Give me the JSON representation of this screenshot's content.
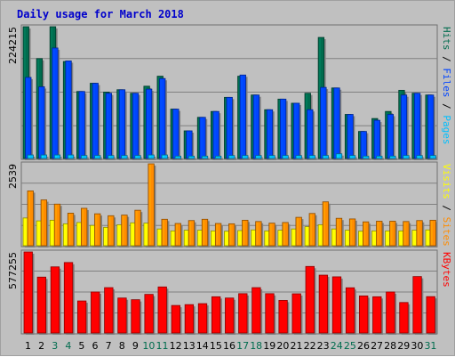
{
  "chart_data": {
    "type": "bar",
    "title": "Daily usage for March 2018",
    "categories": [
      "1",
      "2",
      "3",
      "4",
      "5",
      "6",
      "7",
      "8",
      "9",
      "10",
      "11",
      "12",
      "13",
      "14",
      "15",
      "16",
      "17",
      "18",
      "19",
      "20",
      "21",
      "22",
      "23",
      "24",
      "25",
      "26",
      "27",
      "28",
      "29",
      "30",
      "31"
    ],
    "weekend_days": [
      "3",
      "4",
      "10",
      "11",
      "17",
      "18",
      "24",
      "25",
      "31"
    ],
    "colors": {
      "hits": "#006c4e",
      "files": "#0044ff",
      "pages": "#00bfff",
      "visits": "#ffff00",
      "sites": "#ff8c00",
      "kbytes": "#ff0000",
      "background": "#c0c0c0",
      "weekend_label": "#006c4e",
      "weekday_label": "#000000"
    },
    "panels": [
      {
        "id": "hits-files-pages",
        "ymax_label": "224215",
        "ymax": 224215,
        "right_label": [
          {
            "text": "Pages",
            "color": "#00bfff"
          },
          {
            "text": " / ",
            "color": "#000000"
          },
          {
            "text": "Files",
            "color": "#0044ff"
          },
          {
            "text": " / ",
            "color": "#000000"
          },
          {
            "text": "Hits",
            "color": "#006c4e"
          }
        ],
        "series": [
          {
            "name": "Hits",
            "color": "#006c4e",
            "values": [
              224215,
              170000,
              224215,
              165000,
              114000,
              128000,
              113000,
              117000,
              111000,
              123000,
              140000,
              84000,
              47000,
              70000,
              80000,
              104000,
              140000,
              108000,
              83000,
              101000,
              94000,
              111000,
              206000,
              120000,
              75000,
              46000,
              68000,
              80000,
              116000,
              111000,
              108000
            ]
          },
          {
            "name": "Files",
            "color": "#0044ff",
            "values": [
              138000,
              122000,
              188000,
              166000,
              114000,
              128000,
              111000,
              117000,
              111000,
              118000,
              136000,
              84000,
              47000,
              70000,
              80000,
              104000,
              142000,
              108000,
              83000,
              101000,
              94000,
              83000,
              121000,
              120000,
              75000,
              46000,
              65000,
              75000,
              108000,
              111000,
              108000
            ]
          },
          {
            "name": "Pages",
            "color": "#00bfff",
            "values": [
              6000,
              6000,
              6000,
              6000,
              5000,
              5000,
              5000,
              5000,
              5000,
              6000,
              6000,
              4000,
              4000,
              4000,
              4000,
              5000,
              5000,
              5000,
              5000,
              5000,
              5000,
              5000,
              5000,
              8000,
              5000,
              4000,
              4000,
              4000,
              5000,
              5000,
              5000
            ]
          }
        ]
      },
      {
        "id": "visits-sites",
        "ymax_label": "2539",
        "ymax": 2539,
        "right_label": [
          {
            "text": "Sites",
            "color": "#ff8c00"
          },
          {
            "text": " / ",
            "color": "#000000"
          },
          {
            "text": "Visits",
            "color": "#ffff00"
          }
        ],
        "series": [
          {
            "name": "Sites",
            "color": "#ff8c00",
            "values": [
              1700,
              1420,
              1290,
              1010,
              1160,
              990,
              930,
              950,
              1100,
              2539,
              820,
              690,
              780,
              820,
              690,
              680,
              790,
              750,
              700,
              720,
              880,
              1000,
              1360,
              850,
              830,
              740,
              760,
              760,
              750,
              780,
              790
            ]
          },
          {
            "name": "Visits",
            "color": "#ffff00",
            "values": [
              860,
              770,
              790,
              680,
              720,
              630,
              570,
              650,
              710,
              700,
              520,
              460,
              480,
              480,
              460,
              450,
              470,
              490,
              460,
              480,
              520,
              590,
              650,
              520,
              480,
              450,
              460,
              460,
              460,
              480,
              490
            ]
          }
        ]
      },
      {
        "id": "kbytes",
        "ymax_label": "577255",
        "ymax": 577255,
        "right_label": [
          {
            "text": "KBytes",
            "color": "#ff0000"
          }
        ],
        "series": [
          {
            "name": "KBytes",
            "color": "#ff0000",
            "values": [
              577255,
              398000,
              471000,
              502000,
              228000,
              292000,
              323000,
              249000,
              237000,
              275000,
              328000,
              196000,
              202000,
              209000,
              258000,
              249000,
              280000,
              323000,
              280000,
              232000,
              279000,
              474000,
              412000,
              400000,
              322000,
              264000,
              258000,
              292000,
              217000,
              402000,
              259000
            ]
          }
        ]
      }
    ]
  }
}
